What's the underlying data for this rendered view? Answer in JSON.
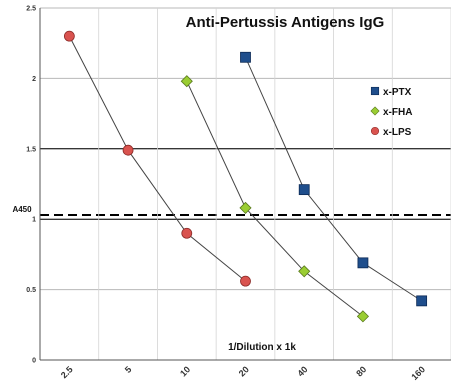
{
  "chart_data": {
    "type": "line",
    "title": "Anti-Pertussis Antigens IgG",
    "xlabel": "1/Dilution x 1k",
    "ylabel": "A450",
    "categories": [
      "2.5",
      "5",
      "10",
      "20",
      "40",
      "80",
      "160"
    ],
    "y_ticks": [
      "0",
      "0.5",
      "1",
      "1.5",
      "2",
      "2.5"
    ],
    "ylim": [
      0,
      2.5
    ],
    "grid": true,
    "legend_position": "right",
    "reference_lines": [
      {
        "y": 1.5,
        "style": "solid"
      },
      {
        "y": 1.0,
        "style": "solid"
      },
      {
        "y": 1.03,
        "style": "dashed"
      }
    ],
    "series": [
      {
        "name": "x-PTX",
        "marker": "square",
        "color": "#1f4e8c",
        "points": [
          {
            "x": "20",
            "y": 2.15
          },
          {
            "x": "40",
            "y": 1.21
          },
          {
            "x": "80",
            "y": 0.69
          },
          {
            "x": "160",
            "y": 0.42
          }
        ]
      },
      {
        "name": "x-FHA",
        "marker": "diamond",
        "color": "#9acd32",
        "points": [
          {
            "x": "10",
            "y": 1.98
          },
          {
            "x": "20",
            "y": 1.08
          },
          {
            "x": "40",
            "y": 0.63
          },
          {
            "x": "80",
            "y": 0.31
          }
        ]
      },
      {
        "name": "x-LPS",
        "marker": "circle",
        "color": "#d9534f",
        "points": [
          {
            "x": "2.5",
            "y": 2.3
          },
          {
            "x": "5",
            "y": 1.49
          },
          {
            "x": "10",
            "y": 0.9
          },
          {
            "x": "20",
            "y": 0.56
          }
        ]
      }
    ]
  }
}
